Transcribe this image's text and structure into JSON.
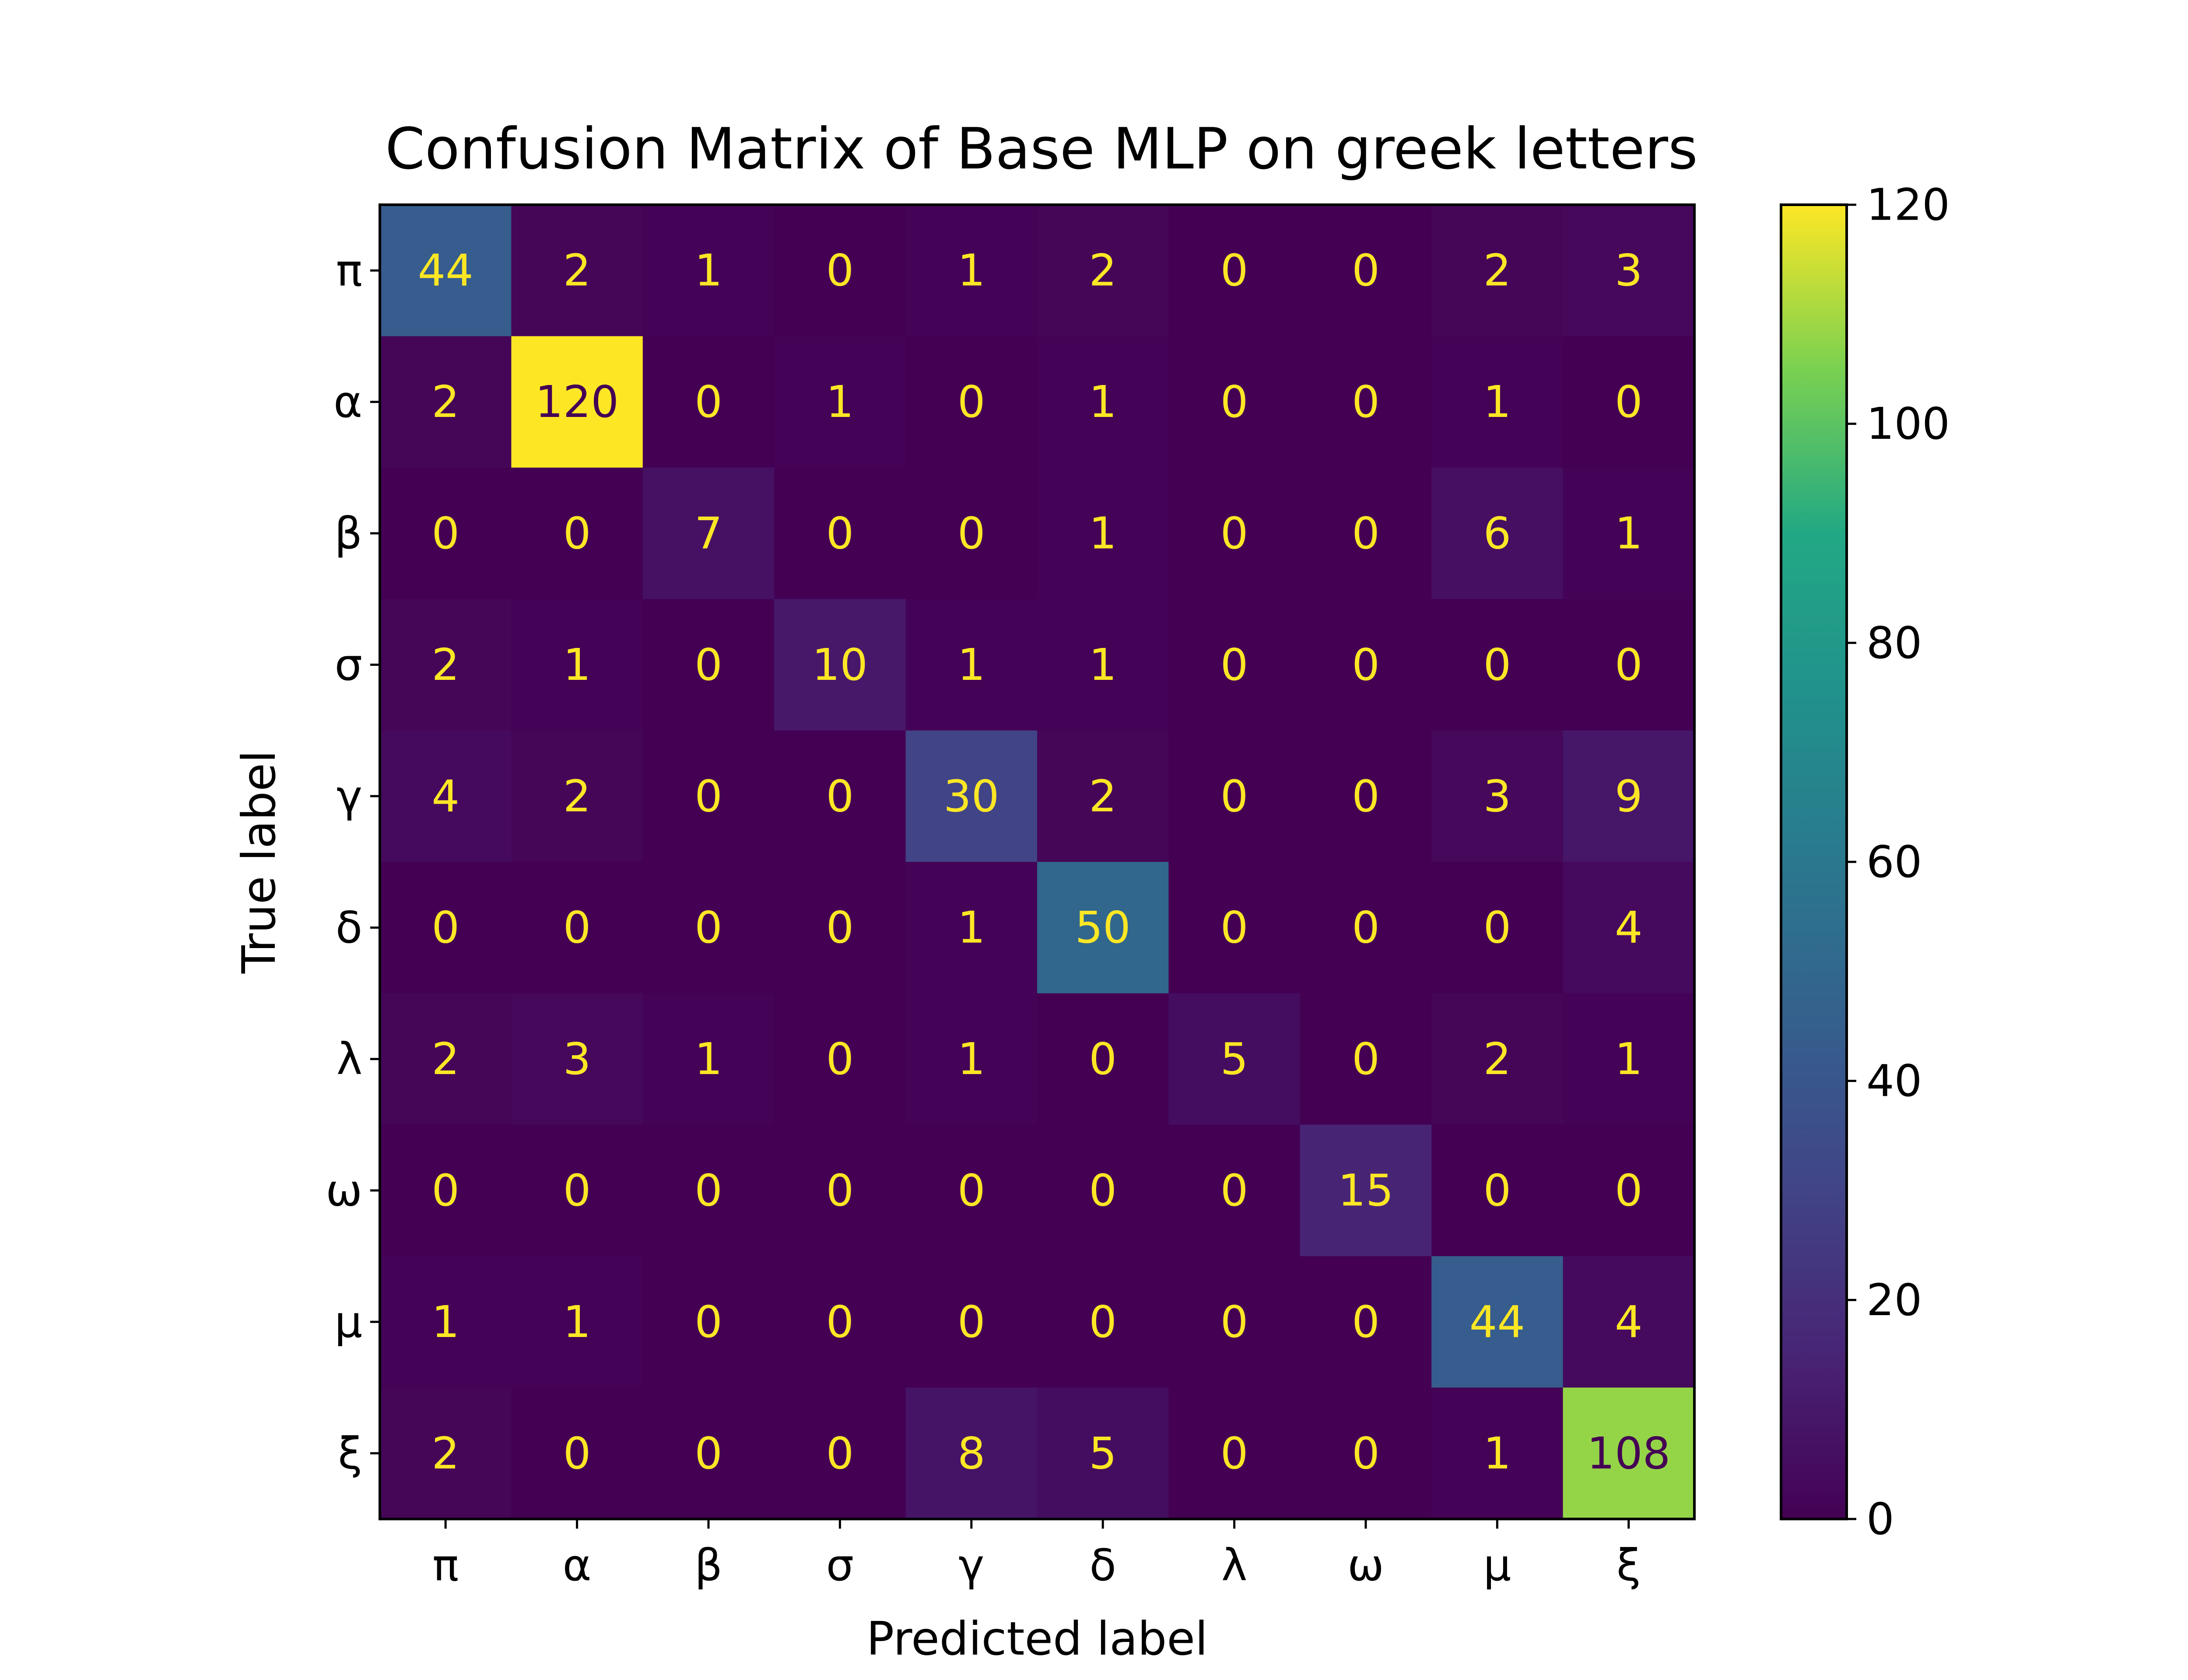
{
  "chart_data": {
    "type": "heatmap",
    "title": "Confusion Matrix of Base MLP on greek letters",
    "xlabel": "Predicted label",
    "ylabel": "True label",
    "x_categories": [
      "π",
      "α",
      "β",
      "σ",
      "γ",
      "δ",
      "λ",
      "ω",
      "μ",
      "ξ"
    ],
    "y_categories": [
      "π",
      "α",
      "β",
      "σ",
      "γ",
      "δ",
      "λ",
      "ω",
      "μ",
      "ξ"
    ],
    "values": [
      [
        44,
        2,
        1,
        0,
        1,
        2,
        0,
        0,
        2,
        3
      ],
      [
        2,
        120,
        0,
        1,
        0,
        1,
        0,
        0,
        1,
        0
      ],
      [
        0,
        0,
        7,
        0,
        0,
        1,
        0,
        0,
        6,
        1
      ],
      [
        2,
        1,
        0,
        10,
        1,
        1,
        0,
        0,
        0,
        0
      ],
      [
        4,
        2,
        0,
        0,
        30,
        2,
        0,
        0,
        3,
        9
      ],
      [
        0,
        0,
        0,
        0,
        1,
        50,
        0,
        0,
        0,
        4
      ],
      [
        2,
        3,
        1,
        0,
        1,
        0,
        5,
        0,
        2,
        1
      ],
      [
        0,
        0,
        0,
        0,
        0,
        0,
        0,
        15,
        0,
        0
      ],
      [
        1,
        1,
        0,
        0,
        0,
        0,
        0,
        0,
        44,
        4
      ],
      [
        2,
        0,
        0,
        0,
        8,
        5,
        0,
        0,
        1,
        108
      ]
    ],
    "colormap": "viridis",
    "colorbar": {
      "range": [
        0,
        120
      ],
      "ticks": [
        "0",
        "20",
        "40",
        "60",
        "80",
        "100",
        "120"
      ]
    },
    "text_colors": {
      "light": "#fde725",
      "dark": "#440154"
    },
    "grid": false
  }
}
